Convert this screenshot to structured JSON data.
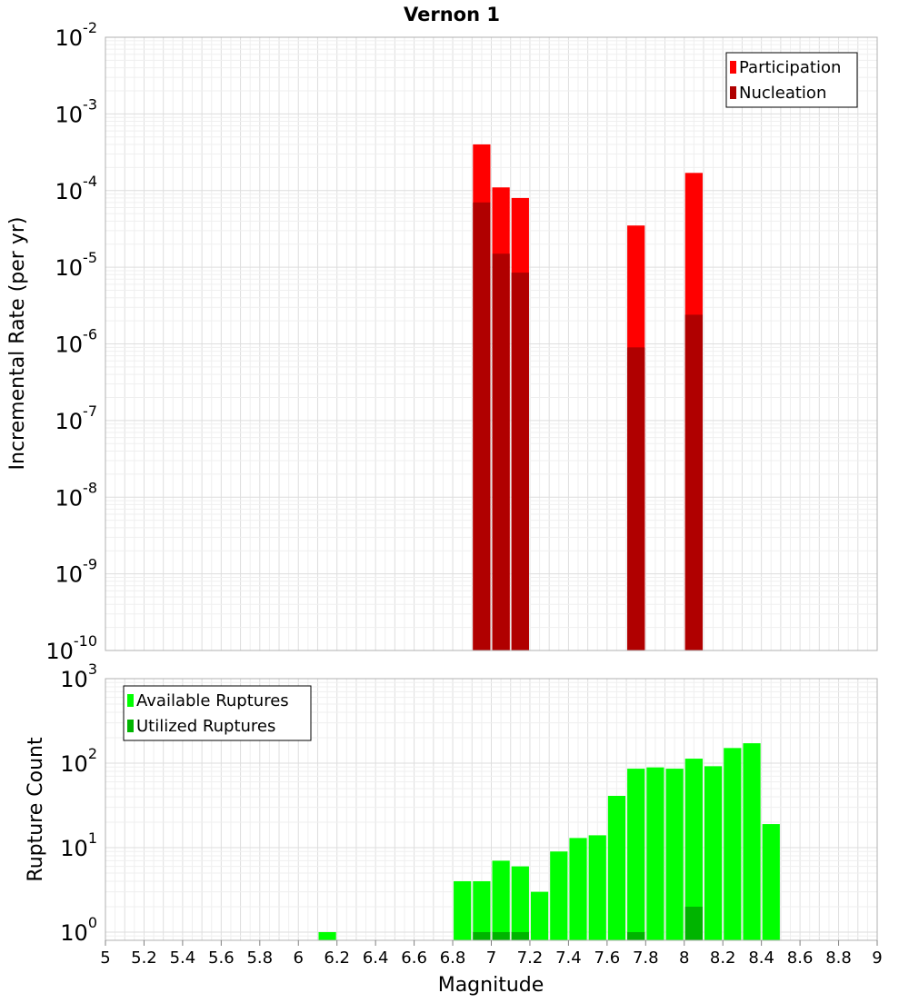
{
  "chart_data": [
    {
      "type": "bar",
      "title": "Vernon 1",
      "ylabel": "Incremental Rate (per yr)",
      "xlabel": "",
      "xlim": [
        5,
        9
      ],
      "ylim": [
        1e-10,
        0.01
      ],
      "yscale": "log",
      "bar_width": 0.1,
      "grid": true,
      "legend_position": "top-right",
      "y_ticks": [
        {
          "base": "10",
          "exp": "-10"
        },
        {
          "base": "10",
          "exp": "-9"
        },
        {
          "base": "10",
          "exp": "-8"
        },
        {
          "base": "10",
          "exp": "-7"
        },
        {
          "base": "10",
          "exp": "-6"
        },
        {
          "base": "10",
          "exp": "-5"
        },
        {
          "base": "10",
          "exp": "-4"
        },
        {
          "base": "10",
          "exp": "-3"
        },
        {
          "base": "10",
          "exp": "-2"
        }
      ],
      "series": [
        {
          "name": "Participation",
          "color": "#ff0000",
          "x": [
            6.95,
            7.05,
            7.15,
            7.75,
            8.05
          ],
          "values": [
            0.0004,
            0.00011,
            8e-05,
            3.5e-05,
            0.00017
          ]
        },
        {
          "name": "Nucleation",
          "color": "#b00000",
          "x": [
            6.95,
            7.05,
            7.15,
            7.75,
            8.05
          ],
          "values": [
            7e-05,
            1.5e-05,
            8.5e-06,
            9e-07,
            2.4e-06
          ]
        }
      ]
    },
    {
      "type": "bar",
      "title": "",
      "ylabel": "Rupture Count",
      "xlabel": "Magnitude",
      "xlim": [
        5,
        9
      ],
      "ylim": [
        0.8,
        1000
      ],
      "yscale": "log",
      "bar_width": 0.1,
      "grid": true,
      "legend_position": "top-left",
      "x_ticks": [
        "5",
        "5.2",
        "5.4",
        "5.6",
        "5.8",
        "6",
        "6.2",
        "6.4",
        "6.6",
        "6.8",
        "7",
        "7.2",
        "7.4",
        "7.6",
        "7.8",
        "8",
        "8.2",
        "8.4",
        "8.6",
        "8.8",
        "9"
      ],
      "y_ticks": [
        {
          "base": "10",
          "exp": "0"
        },
        {
          "base": "10",
          "exp": "1"
        },
        {
          "base": "10",
          "exp": "2"
        },
        {
          "base": "10",
          "exp": "3"
        }
      ],
      "series": [
        {
          "name": "Available Ruptures",
          "color": "#00ff00",
          "x": [
            6.15,
            6.85,
            6.95,
            7.05,
            7.15,
            7.25,
            7.35,
            7.45,
            7.55,
            7.65,
            7.75,
            7.85,
            7.95,
            8.05,
            8.15,
            8.25,
            8.35,
            8.45
          ],
          "values": [
            1,
            4,
            4,
            7,
            6,
            3,
            9,
            13,
            14,
            41,
            86,
            89,
            86,
            113,
            92,
            151,
            172,
            19
          ]
        },
        {
          "name": "Utilized Ruptures",
          "color": "#00b400",
          "x": [
            6.95,
            7.05,
            7.15,
            7.75,
            8.05
          ],
          "values": [
            1,
            1,
            1,
            1,
            2
          ]
        }
      ]
    }
  ]
}
